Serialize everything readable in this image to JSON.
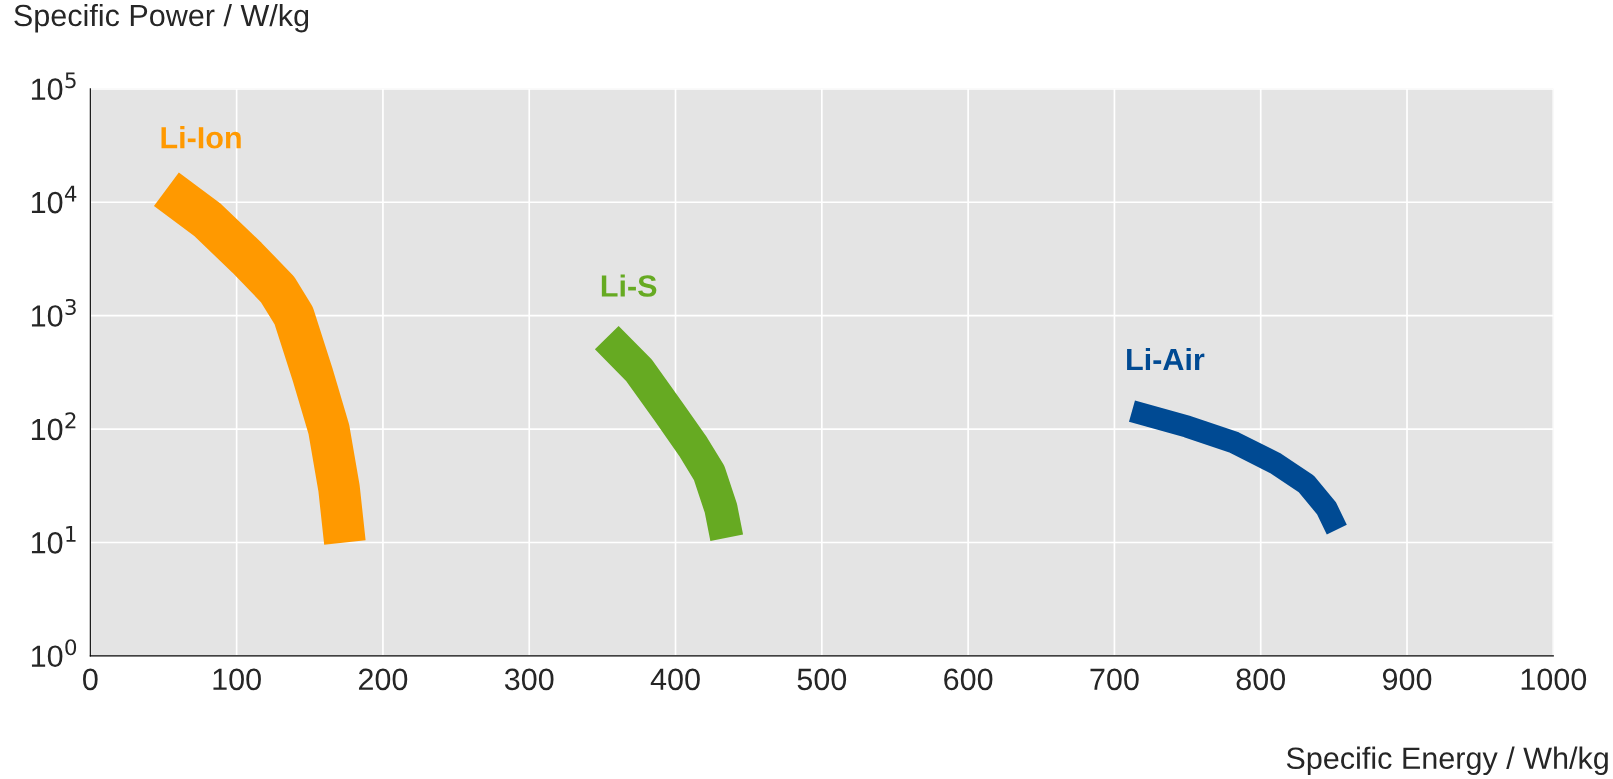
{
  "chart_data": {
    "type": "line",
    "xlabel": "Specific Energy / Wh/kg",
    "ylabel": "Specific Power / W/kg",
    "log": "y",
    "grid": true,
    "legend": false,
    "line_style": "solid",
    "marker": "none",
    "xlim": [
      0,
      1000
    ],
    "xticks": [
      0,
      100,
      200,
      300,
      400,
      500,
      600,
      700,
      800,
      900,
      1000
    ],
    "ylim": [
      1,
      100000
    ],
    "yticks": [
      {
        "value": 1,
        "label": "10$^{0}$"
      },
      {
        "value": 10,
        "label": "10$^{1}$"
      },
      {
        "value": 100,
        "label": "10$^{2}$"
      },
      {
        "value": 1000,
        "label": "10$^{3}$"
      },
      {
        "value": 10000,
        "label": "10$^{4}$"
      },
      {
        "value": 100000,
        "label": "10$^{5}$"
      }
    ],
    "series": [
      {
        "name": "Li-Ion",
        "color": "#ff9900",
        "x": [
          52,
          80,
          107,
          128,
          139,
          152,
          163,
          170,
          174
        ],
        "values": [
          13000,
          7000,
          3250,
          1700,
          1000,
          300,
          100,
          30,
          10
        ]
      },
      {
        "name": "Li-S",
        "color": "#66aa22",
        "x": [
          353,
          375,
          395,
          412,
          423,
          431,
          435
        ],
        "values": [
          640,
          330,
          144,
          70,
          41,
          20,
          11
        ]
      },
      {
        "name": "Li-Air",
        "color": "#004a93",
        "x": [
          712,
          750,
          782,
          810,
          831,
          845,
          852
        ],
        "values": [
          144,
          105,
          76,
          50,
          33,
          20,
          13
        ]
      }
    ]
  }
}
